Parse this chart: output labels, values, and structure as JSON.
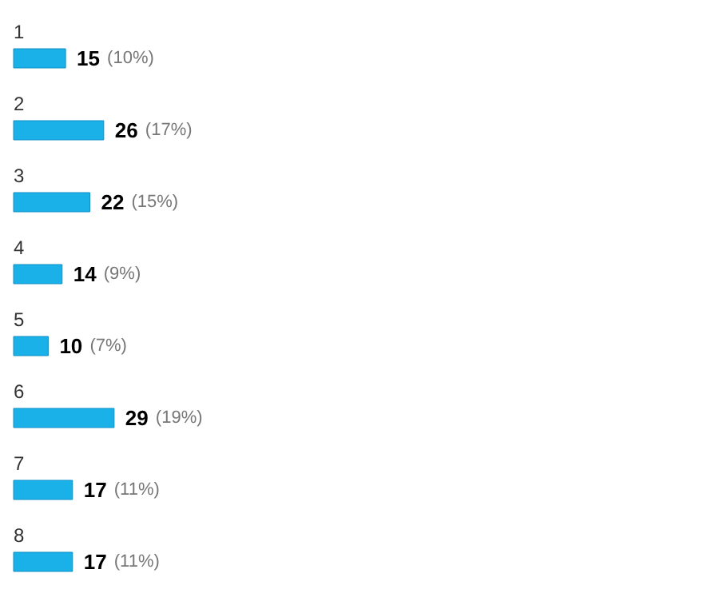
{
  "chart_data": {
    "type": "bar",
    "orientation": "horizontal",
    "categories": [
      "1",
      "2",
      "3",
      "4",
      "5",
      "6",
      "7",
      "8"
    ],
    "values": [
      15,
      26,
      22,
      14,
      10,
      29,
      17,
      17
    ],
    "color": "#1ab0e8",
    "value_labels": [
      "15 (10%)",
      "26 (17%)",
      "22 (15%)",
      "14 (9%)",
      "10 (7%)",
      "29 (19%)",
      "17 (11%)",
      "17 (11%)"
    ]
  }
}
